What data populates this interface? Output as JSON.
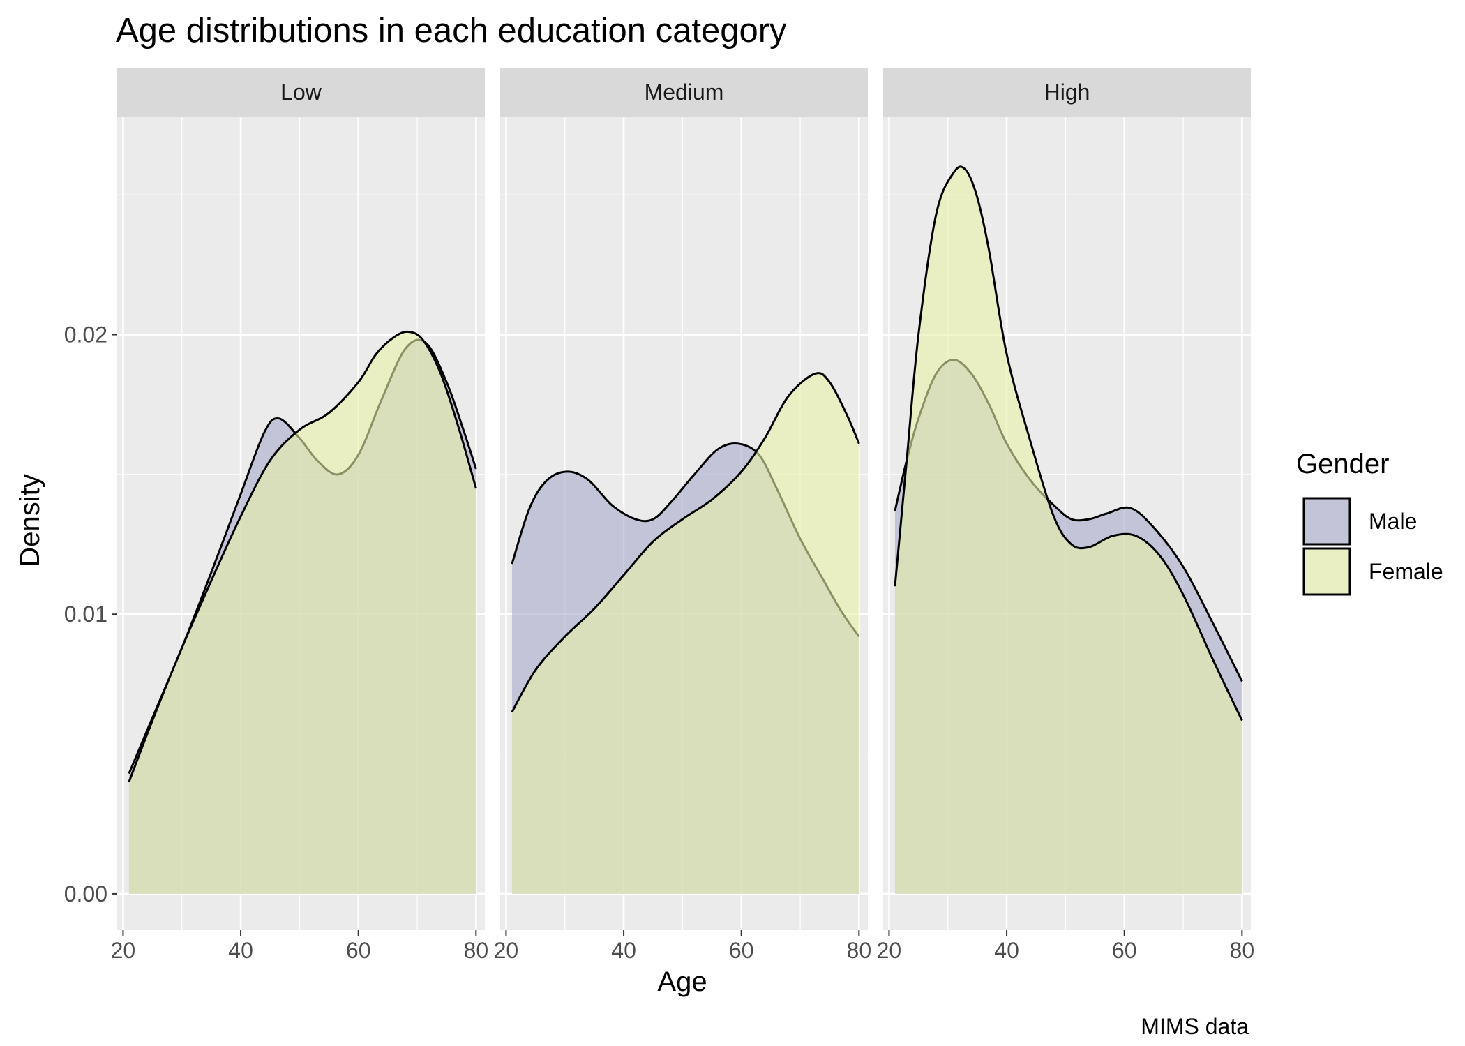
{
  "chart_data": {
    "type": "area",
    "subtype": "density",
    "title": "Age distributions in each education category",
    "xlabel": "Age",
    "ylabel": "Density",
    "caption": "MIMS data",
    "xlim": [
      19,
      81.5
    ],
    "ylim": [
      -0.0013,
      0.0278
    ],
    "x_ticks": [
      20,
      40,
      60,
      80
    ],
    "x_tick_labels": [
      "20",
      "40",
      "60",
      "80"
    ],
    "y_ticks": [
      0.0,
      0.01,
      0.02
    ],
    "y_tick_labels": [
      "0.00",
      "0.01",
      "0.02"
    ],
    "grid": true,
    "legend": {
      "title": "Gender",
      "position": "right",
      "entries": [
        {
          "label": "Male",
          "color": "#aaaacc"
        },
        {
          "label": "Female",
          "color": "#e8f0a8"
        }
      ]
    },
    "panels": [
      {
        "name": "Low",
        "series": [
          {
            "name": "Male",
            "color": "#aaaacc",
            "x": [
              21,
              25,
              30,
              35,
              40,
              44,
              46.5,
              50,
              53,
              56.5,
              60,
              64,
              68,
              71.5,
              75,
              78,
              80
            ],
            "y": [
              0.0043,
              0.0063,
              0.0088,
              0.0115,
              0.0143,
              0.0165,
              0.017,
              0.0163,
              0.0155,
              0.015,
              0.0157,
              0.0177,
              0.0195,
              0.0197,
              0.0183,
              0.0165,
              0.0152
            ]
          },
          {
            "name": "Female",
            "color": "#e8f0a8",
            "x": [
              21,
              25,
              30,
              35,
              40,
              45,
              50,
              55,
              60,
              63,
              66,
              68.5,
              71,
              74,
              77,
              80
            ],
            "y": [
              0.004,
              0.0062,
              0.0088,
              0.0112,
              0.0135,
              0.0155,
              0.0166,
              0.0172,
              0.0183,
              0.0193,
              0.0199,
              0.0201,
              0.0198,
              0.0186,
              0.0167,
              0.0145
            ]
          }
        ]
      },
      {
        "name": "Medium",
        "series": [
          {
            "name": "Male",
            "color": "#aaaacc",
            "x": [
              21,
              24,
              27,
              30.5,
              34,
              38,
              42,
              45,
              48,
              52,
              56,
              59.5,
              63,
              66,
              70,
              74,
              77,
              80
            ],
            "y": [
              0.0118,
              0.0138,
              0.0148,
              0.0151,
              0.0148,
              0.0139,
              0.0134,
              0.0134,
              0.014,
              0.015,
              0.0159,
              0.0161,
              0.0157,
              0.0145,
              0.0127,
              0.0112,
              0.0101,
              0.0092
            ]
          },
          {
            "name": "Female",
            "color": "#e8f0a8",
            "x": [
              21,
              25,
              30,
              35,
              40,
              45,
              50,
              55,
              60,
              64,
              68,
              72.5,
              75,
              78,
              80
            ],
            "y": [
              0.0065,
              0.008,
              0.0092,
              0.0102,
              0.0114,
              0.0126,
              0.0134,
              0.0141,
              0.0151,
              0.0163,
              0.0178,
              0.0186,
              0.0183,
              0.0171,
              0.0161
            ]
          }
        ]
      },
      {
        "name": "High",
        "series": [
          {
            "name": "Male",
            "color": "#aaaacc",
            "x": [
              21,
              23,
              25,
              28,
              31,
              34,
              37,
              40,
              44,
              48,
              51,
              54,
              57,
              61,
              65,
              70,
              75,
              80
            ],
            "y": [
              0.0137,
              0.0155,
              0.017,
              0.0186,
              0.0191,
              0.0186,
              0.0175,
              0.0161,
              0.0148,
              0.0139,
              0.0134,
              0.0134,
              0.0136,
              0.0138,
              0.0131,
              0.0117,
              0.0097,
              0.0076
            ]
          },
          {
            "name": "Female",
            "color": "#e8f0a8",
            "x": [
              21,
              23,
              25,
              28,
              31,
              33,
              35,
              37,
              40,
              44,
              48,
              51,
              54,
              58,
              62,
              66,
              70,
              75,
              80
            ],
            "y": [
              0.011,
              0.0155,
              0.02,
              0.0243,
              0.0258,
              0.0259,
              0.0249,
              0.023,
              0.0193,
              0.0162,
              0.0135,
              0.0125,
              0.0124,
              0.0128,
              0.0128,
              0.0121,
              0.0107,
              0.0084,
              0.0062
            ]
          }
        ]
      }
    ]
  }
}
